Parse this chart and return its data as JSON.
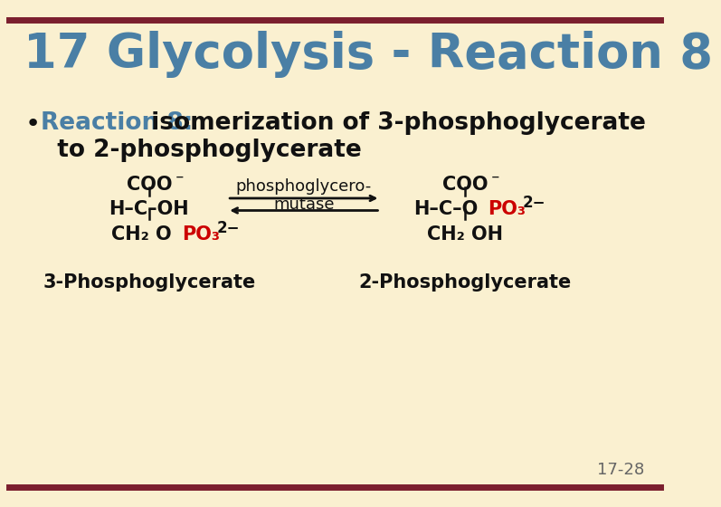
{
  "bg_color": "#FAF0D0",
  "border_color": "#7B1F2E",
  "title": "17 Glycolysis - Reaction 8",
  "title_color": "#4A7FA5",
  "title_fontsize": 38,
  "bullet_label": "Reaction 8:",
  "bullet_label_color": "#4A7FA5",
  "bullet_rest": " isomerization of 3-phosphoglycerate",
  "bullet_line2": "  to 2-phosphoglycerate",
  "bullet_fontsize": 19,
  "slide_number": "17-28",
  "slide_number_color": "#666666",
  "enzyme_line1": "phosphoglycero-",
  "enzyme_line2": "mutase",
  "left_label": "3-Phosphoglycerate",
  "right_label": "2-Phosphoglycerate",
  "red_color": "#CC0000",
  "black_color": "#111111",
  "mol_fontsize": 15
}
